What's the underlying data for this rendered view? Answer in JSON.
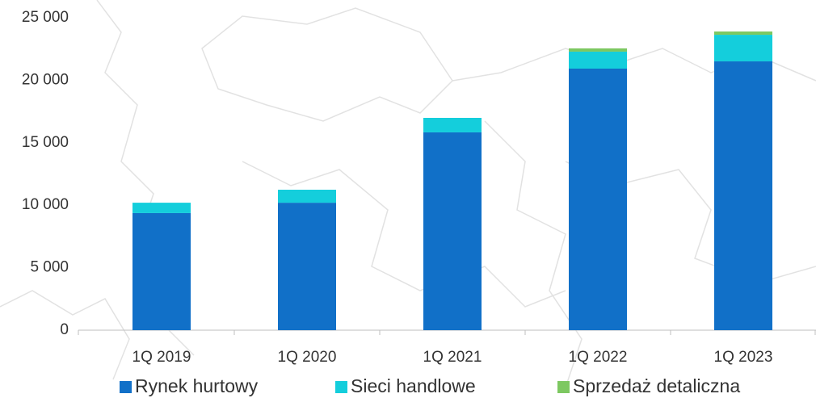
{
  "chart_data": {
    "type": "stacked_bar",
    "categories": [
      "1Q 2019",
      "1Q 2020",
      "1Q 2021",
      "1Q 2022",
      "1Q 2023"
    ],
    "series": [
      {
        "name": "Rynek hurtowy",
        "color": "#1170c8",
        "values": [
          9370,
          10200,
          15830,
          20930,
          21510
        ]
      },
      {
        "name": "Sieci handlowe",
        "color": "#14cedc",
        "values": [
          830,
          1040,
          1160,
          1360,
          2130
        ]
      },
      {
        "name": "Sprzedaż detaliczna",
        "color": "#7dc861",
        "values": [
          0,
          0,
          0,
          260,
          260
        ]
      }
    ],
    "ylim": [
      0,
      25000
    ],
    "yticks": [
      {
        "value": 0,
        "label": "0"
      },
      {
        "value": 5000,
        "label": "5 000"
      },
      {
        "value": 10000,
        "label": "10 000"
      },
      {
        "value": 15000,
        "label": "15 000"
      },
      {
        "value": 20000,
        "label": "20 000"
      },
      {
        "value": 25000,
        "label": "25 000"
      }
    ],
    "legend": "bottom"
  }
}
